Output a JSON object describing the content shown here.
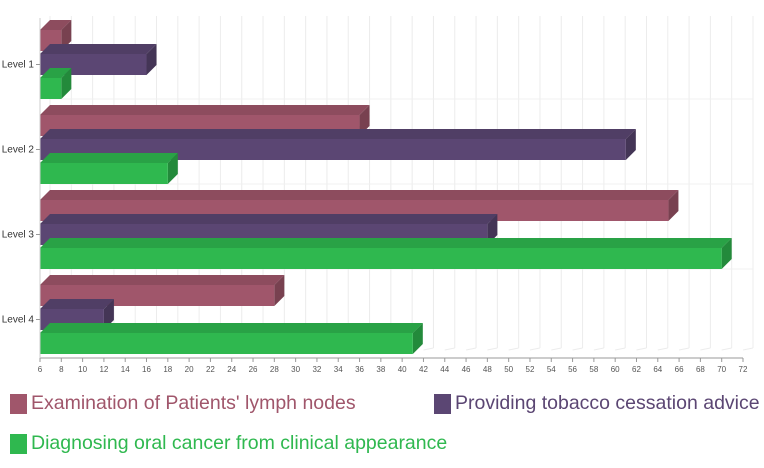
{
  "chart_data": {
    "type": "bar",
    "orientation": "horizontal",
    "style": "3d",
    "title": "",
    "xlabel": "",
    "ylabel": "",
    "categories": [
      "Level 1",
      "Level 2",
      "Level 3",
      "Level 4"
    ],
    "series": [
      {
        "name": "Examination of Patients' lymph nodes",
        "color": "#a0566b",
        "values": [
          8,
          36,
          65,
          28
        ]
      },
      {
        "name": "Providing tobacco cessation advice",
        "color": "#5b4673",
        "values": [
          16,
          61,
          48,
          12
        ]
      },
      {
        "name": "Diagnosing oral cancer from clinical appearance",
        "color": "#2fb84f",
        "values": [
          8,
          18,
          70,
          41
        ]
      }
    ],
    "xlim": [
      6,
      72
    ],
    "xticks": [
      6,
      8,
      10,
      12,
      14,
      16,
      18,
      20,
      22,
      24,
      26,
      28,
      30,
      32,
      34,
      36,
      38,
      40,
      42,
      44,
      46,
      48,
      50,
      52,
      54,
      56,
      58,
      60,
      62,
      64,
      66,
      68,
      70,
      72
    ],
    "grid": true,
    "legend_position": "bottom"
  },
  "legend": {
    "items": [
      {
        "label": "Examination of Patients' lymph nodes",
        "color": "#a0566b",
        "text_color": "#a0566b"
      },
      {
        "label": "Providing tobacco cessation advice",
        "color": "#5b4673",
        "text_color": "#5b4673"
      },
      {
        "label": "Diagnosing oral cancer from clinical appearance",
        "color": "#2fb84f",
        "text_color": "#2fb84f"
      }
    ]
  }
}
